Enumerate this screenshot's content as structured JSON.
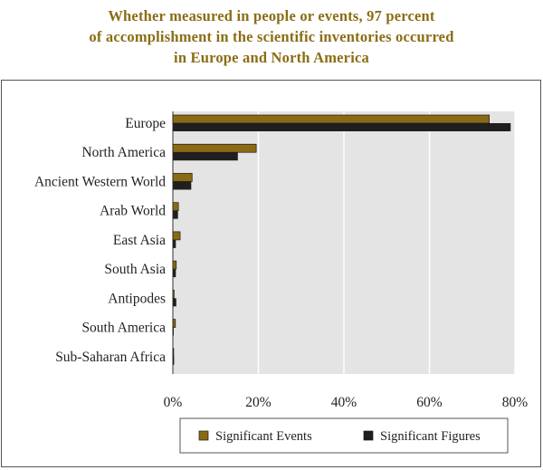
{
  "title_lines": [
    "Whether measured in people or events, 97 percent",
    "of accomplishment in the scientific inventories occurred",
    "in Europe and North America"
  ],
  "colors": {
    "events": "#8b6a14",
    "figures": "#1f1f1f",
    "plot_bg": "#e4e4e4",
    "title": "#8a6d14"
  },
  "chart_data": {
    "type": "bar",
    "orientation": "horizontal",
    "title": "Whether measured in people or events, 97 percent of accomplishment in the scientific inventories occurred in Europe and North America",
    "categories": [
      "Europe",
      "North America",
      "Ancient Western World",
      "Arab World",
      "East Asia",
      "South Asia",
      "Antipodes",
      "South America",
      "Sub-Saharan Africa"
    ],
    "series": [
      {
        "name": "Significant Events",
        "values": [
          74,
          19.5,
          4.5,
          1.3,
          1.7,
          0.8,
          0.3,
          0.6,
          0.2
        ]
      },
      {
        "name": "Significant Figures",
        "values": [
          79,
          15.2,
          4.3,
          1.2,
          0.7,
          0.7,
          0.8,
          0.2,
          0.3
        ]
      }
    ],
    "xlim": [
      0,
      80
    ],
    "xticks": [
      0,
      20,
      40,
      60,
      80
    ],
    "xtick_labels": [
      "0%",
      "20%",
      "40%",
      "60%",
      "80%"
    ],
    "legend_position": "bottom"
  }
}
